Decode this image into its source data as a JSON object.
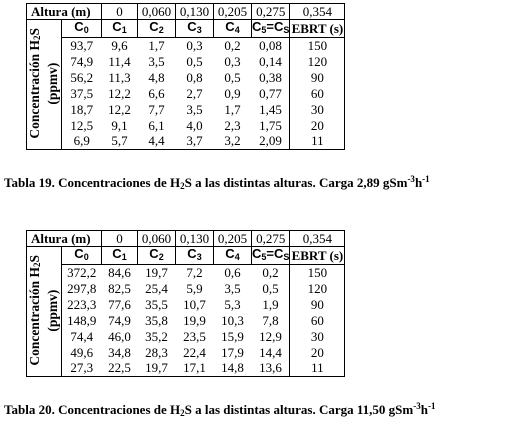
{
  "tables": [
    {
      "altura_label": "Altura (m)",
      "alturas": [
        "0",
        "0,060",
        "0,130",
        "0,205",
        "0,275",
        "0,354"
      ],
      "headers": [
        "C",
        "C",
        "C",
        "C",
        "C",
        "C"
      ],
      "header_subs": [
        "0",
        "1",
        "2",
        "3",
        "4",
        "5"
      ],
      "header_extra": "=C",
      "header_extra_sub": "S",
      "ebrt_label": "EBRT (s)",
      "row_label_line1": "Concentración H",
      "row_label_sub": "2",
      "row_label_line1_end": "S",
      "row_label_line2": "(ppmv)",
      "rows": [
        [
          "93,7",
          "9,6",
          "1,7",
          "0,3",
          "0,2",
          "0,08",
          "150"
        ],
        [
          "74,9",
          "11,4",
          "3,5",
          "0,5",
          "0,3",
          "0,14",
          "120"
        ],
        [
          "56,2",
          "11,3",
          "4,8",
          "0,8",
          "0,5",
          "0,38",
          "90"
        ],
        [
          "37,5",
          "12,2",
          "6,6",
          "2,7",
          "0,9",
          "0,77",
          "60"
        ],
        [
          "18,7",
          "12,2",
          "7,7",
          "3,5",
          "1,7",
          "1,45",
          "30"
        ],
        [
          "12,5",
          "9,1",
          "6,1",
          "4,0",
          "2,3",
          "1,75",
          "20"
        ],
        [
          "6,9",
          "5,7",
          "4,4",
          "3,7",
          "3,2",
          "2,09",
          "11"
        ]
      ],
      "caption_pre": "Tabla 19. Concentraciones de H",
      "caption_sub": "2",
      "caption_mid": "S a las distintas alturas. Carga 2,89 gSm",
      "caption_sup1": "-3",
      "caption_h": "h",
      "caption_sup2": "-1"
    },
    {
      "altura_label": "Altura (m)",
      "alturas": [
        "0",
        "0,060",
        "0,130",
        "0,205",
        "0,275",
        "0,354"
      ],
      "headers": [
        "C",
        "C",
        "C",
        "C",
        "C",
        "C"
      ],
      "header_subs": [
        "0",
        "1",
        "2",
        "3",
        "4",
        "5"
      ],
      "header_extra": "=C",
      "header_extra_sub": "S",
      "ebrt_label": "EBRT (s)",
      "row_label_line1": "Concentración H",
      "row_label_sub": "2",
      "row_label_line1_end": "S",
      "row_label_line2": "(ppmv)",
      "rows": [
        [
          "372,2",
          "84,6",
          "19,7",
          "7,2",
          "0,6",
          "0,2",
          "150"
        ],
        [
          "297,8",
          "82,5",
          "25,4",
          "5,9",
          "3,5",
          "0,5",
          "120"
        ],
        [
          "223,3",
          "77,6",
          "35,5",
          "10,7",
          "5,3",
          "1,9",
          "90"
        ],
        [
          "148,9",
          "74,9",
          "35,8",
          "19,9",
          "10,3",
          "7,8",
          "60"
        ],
        [
          "74,4",
          "46,0",
          "35,2",
          "23,5",
          "15,9",
          "12,9",
          "30"
        ],
        [
          "49,6",
          "34,8",
          "28,3",
          "22,4",
          "17,9",
          "14,4",
          "20"
        ],
        [
          "27,3",
          "22,5",
          "19,7",
          "17,1",
          "14,8",
          "13,6",
          "11"
        ]
      ],
      "caption_pre": "Tabla 20. Concentraciones de H",
      "caption_sub": "2",
      "caption_mid": "S a las distintas alturas. Carga 11,50 gSm",
      "caption_sup1": "-3",
      "caption_h": "h",
      "caption_sup2": "-1"
    }
  ]
}
